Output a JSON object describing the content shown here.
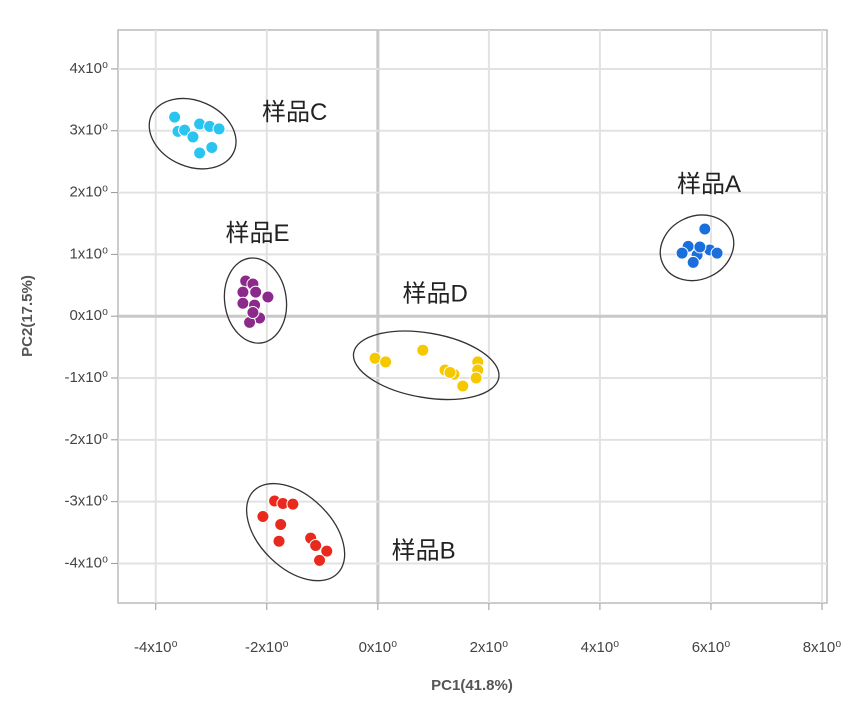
{
  "chart_data": {
    "type": "scatter",
    "x_label": "PC1(41.8%)",
    "y_label": "PC2(17.5%)",
    "xlim": [
      -4.68,
      8.09
    ],
    "ylim": [
      -4.64,
      4.63
    ],
    "xticks": [
      {
        "value": -4,
        "label": "-4x10⁰"
      },
      {
        "value": -2,
        "label": "-2x10⁰"
      },
      {
        "value": 0,
        "label": "0x10⁰"
      },
      {
        "value": 2,
        "label": "2x10⁰"
      },
      {
        "value": 4,
        "label": "4x10⁰"
      },
      {
        "value": 6,
        "label": "6x10⁰"
      },
      {
        "value": 8,
        "label": "8x10⁰"
      }
    ],
    "yticks": [
      {
        "value": -4,
        "label": "-4x10⁰"
      },
      {
        "value": -3,
        "label": "-3x10⁰"
      },
      {
        "value": -2,
        "label": "-2x10⁰"
      },
      {
        "value": -1,
        "label": "-1x10⁰"
      },
      {
        "value": 0,
        "label": "0x10⁰"
      },
      {
        "value": 1,
        "label": "1x10⁰"
      },
      {
        "value": 2,
        "label": "2x10⁰"
      },
      {
        "value": 3,
        "label": "3x10⁰"
      },
      {
        "value": 4,
        "label": "4x10⁰"
      }
    ],
    "grid": true,
    "series": [
      {
        "name": "样品A",
        "color": "#1a6fdc",
        "x": [
          5.89,
          5.59,
          5.48,
          5.75,
          5.68,
          5.98,
          6.11,
          5.8
        ],
        "values": [
          1.41,
          1.13,
          1.02,
          0.99,
          0.87,
          1.07,
          1.02,
          1.12
        ]
      },
      {
        "name": "样品B",
        "color": "#e8291c",
        "x": [
          -1.86,
          -1.71,
          -1.53,
          -2.07,
          -1.75,
          -1.78,
          -1.21,
          -1.12,
          -0.92,
          -1.05
        ],
        "values": [
          -2.99,
          -3.03,
          -3.04,
          -3.24,
          -3.37,
          -3.64,
          -3.59,
          -3.71,
          -3.8,
          -3.95
        ]
      },
      {
        "name": "样品C",
        "color": "#29c4f0",
        "x": [
          -3.66,
          -3.6,
          -3.48,
          -3.21,
          -3.03,
          -2.86,
          -3.33,
          -2.99,
          -3.21
        ],
        "values": [
          3.22,
          2.99,
          3.01,
          3.11,
          3.07,
          3.03,
          2.9,
          2.73,
          2.64
        ]
      },
      {
        "name": "样品D",
        "color": "#f5c800",
        "x": [
          -0.05,
          0.14,
          0.81,
          1.21,
          1.37,
          1.53,
          1.8,
          1.8,
          1.77,
          1.3
        ],
        "values": [
          -0.68,
          -0.74,
          -0.55,
          -0.87,
          -0.94,
          -1.13,
          -0.74,
          -0.87,
          -1.0,
          -0.91
        ]
      },
      {
        "name": "样品E",
        "color": "#8b2a8b",
        "x": [
          -2.38,
          -2.25,
          -2.43,
          -2.2,
          -1.98,
          -2.43,
          -2.22,
          -2.13,
          -2.31,
          -2.25
        ],
        "values": [
          0.57,
          0.52,
          0.39,
          0.39,
          0.31,
          0.21,
          0.18,
          -0.03,
          -0.1,
          0.06
        ]
      }
    ]
  }
}
